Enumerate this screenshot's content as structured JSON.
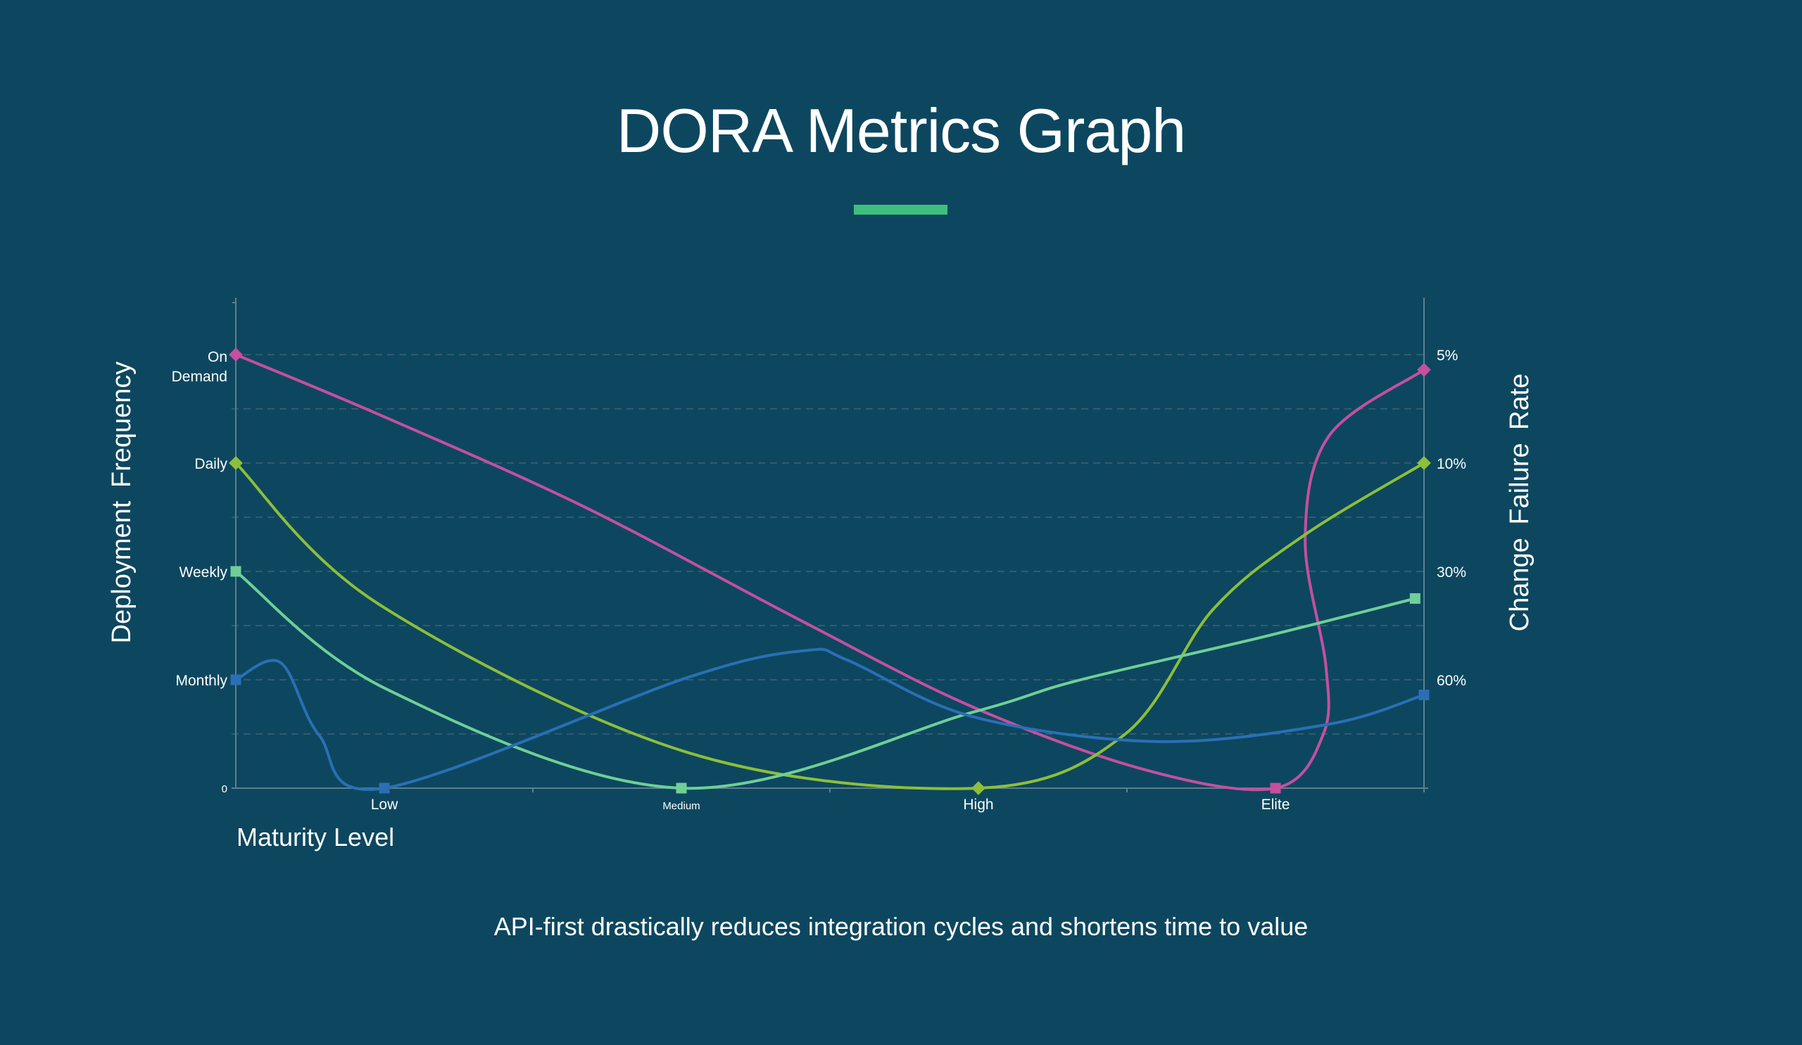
{
  "title": "DORA Metrics Graph",
  "subtitle": "API-first drastically reduces integration cycles and shortens time to value",
  "colors": {
    "background": "#0d475f",
    "accent": "#3fbf7f",
    "axis": "#5d7f8f",
    "grid": "#3f6274"
  },
  "chart_data": {
    "type": "line",
    "title": "DORA Metrics Graph",
    "xlabel": "Maturity Level",
    "ylabel_left": "Deployment Frequency",
    "ylabel_right": "Change Failure Rate",
    "categories": [
      "Low",
      "Medium",
      "High",
      "Elite"
    ],
    "xlim": [
      -0.5,
      3.5
    ],
    "y_left_ticks": [
      {
        "v": 0,
        "label": "0"
      },
      {
        "v": 1,
        "label": "Monthly"
      },
      {
        "v": 2,
        "label": "Weekly"
      },
      {
        "v": 3,
        "label": "Daily"
      },
      {
        "v": 4,
        "label": "On Demand"
      }
    ],
    "y_right_ticks": [
      {
        "v": 1,
        "label": "60%"
      },
      {
        "v": 2,
        "label": "30%"
      },
      {
        "v": 3,
        "label": "10%"
      },
      {
        "v": 4,
        "label": "5%"
      }
    ],
    "ylim": [
      0,
      4.8
    ],
    "grid": "dashed horizontal",
    "series": [
      {
        "color": "#c4509f",
        "marker": "diamond",
        "markers": [
          0,
          11
        ],
        "square": [
          6
        ],
        "points": [
          [
            -0.5,
            4.0
          ],
          [
            -0.02,
            3.45
          ],
          [
            0.67,
            2.6
          ],
          [
            1.4,
            1.55
          ],
          [
            1.98,
            0.75
          ],
          [
            2.56,
            0.17
          ],
          [
            3.0,
            0.0
          ],
          [
            3.16,
            0.49
          ],
          [
            3.17,
            1.12
          ],
          [
            3.1,
            2.29
          ],
          [
            3.18,
            3.25
          ],
          [
            3.5,
            3.86
          ]
        ]
      },
      {
        "color": "#8cbf3a",
        "marker": "diamond",
        "markers": [
          0,
          3,
          7
        ],
        "square": [],
        "points": [
          [
            -0.5,
            3.0
          ],
          [
            -0.02,
            1.7
          ],
          [
            1.02,
            0.33
          ],
          [
            2.0,
            0.0
          ],
          [
            2.49,
            0.49
          ],
          [
            2.79,
            1.65
          ],
          [
            3.1,
            2.34
          ],
          [
            3.5,
            3.0
          ]
        ]
      },
      {
        "color": "#6fcf97",
        "marker": "square",
        "markers": [],
        "square": [
          0,
          2,
          6
        ],
        "points": [
          [
            -0.5,
            2.0
          ],
          [
            0.01,
            0.91
          ],
          [
            1.0,
            0.0
          ],
          [
            1.98,
            0.7
          ],
          [
            2.33,
            0.99
          ],
          [
            2.95,
            1.39
          ],
          [
            3.47,
            1.75
          ]
        ]
      },
      {
        "color": "#2a6fb5",
        "marker": "square",
        "markers": [],
        "square": [
          0,
          3,
          10
        ],
        "points": [
          [
            -0.5,
            1.0
          ],
          [
            -0.35,
            1.16
          ],
          [
            -0.22,
            0.49
          ],
          [
            0.0,
            0.0
          ],
          [
            1.02,
            1.02
          ],
          [
            1.42,
            1.27
          ],
          [
            1.56,
            1.18
          ],
          [
            1.98,
            0.66
          ],
          [
            2.6,
            0.43
          ],
          [
            3.18,
            0.59
          ],
          [
            3.5,
            0.86
          ]
        ]
      }
    ]
  }
}
